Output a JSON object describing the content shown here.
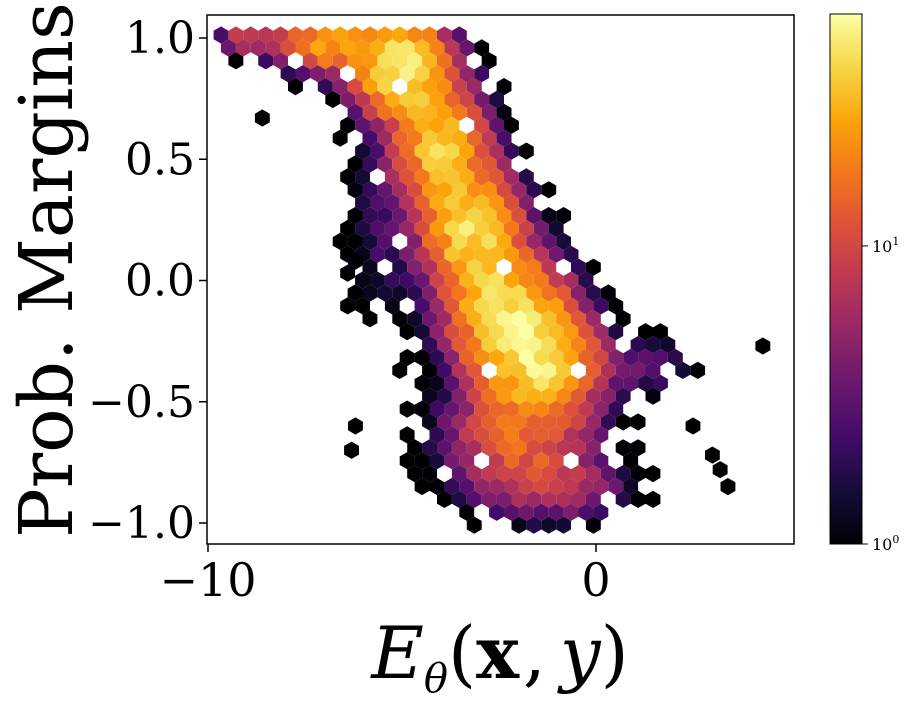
{
  "chart_data": {
    "type": "heatmap",
    "subtype": "hexbin",
    "xlabel": "E_θ(x, y)",
    "xlabel_parts": {
      "main": "E",
      "sub": "θ",
      "args": "(",
      "x": "x",
      "comma": ",",
      "y": "y",
      "close": ")"
    },
    "ylabel": "Prob. Margins",
    "xlim": [
      -10.2,
      5.0
    ],
    "ylim": [
      -1.06,
      1.06
    ],
    "xticks": [
      {
        "value": -10,
        "label": "−10"
      },
      {
        "value": 0,
        "label": "0"
      }
    ],
    "yticks": [
      {
        "value": 1.0,
        "label": "1.0"
      },
      {
        "value": 0.5,
        "label": "0.5"
      },
      {
        "value": 0.0,
        "label": "0.0"
      },
      {
        "value": -0.5,
        "label": "−0.5"
      },
      {
        "value": -1.0,
        "label": "−1.0"
      }
    ],
    "colorbar": {
      "scale": "log",
      "colormap": "inferno",
      "min": 1,
      "max": 60,
      "ticks": [
        {
          "value": 1,
          "base": "10",
          "exp": "0"
        },
        {
          "value": 10,
          "base": "10",
          "exp": "1"
        }
      ]
    },
    "grid": false,
    "density_ridge": [
      {
        "x": -9.0,
        "y": 1.0,
        "sx": 0.45,
        "sy": 0.04,
        "peak": 10
      },
      {
        "x": -7.0,
        "y": 0.98,
        "sx": 0.7,
        "sy": 0.07,
        "peak": 25
      },
      {
        "x": -5.0,
        "y": 0.88,
        "sx": 0.7,
        "sy": 0.12,
        "peak": 50
      },
      {
        "x": -4.0,
        "y": 0.55,
        "sx": 0.65,
        "sy": 0.15,
        "peak": 35
      },
      {
        "x": -3.2,
        "y": 0.2,
        "sx": 0.7,
        "sy": 0.15,
        "peak": 40
      },
      {
        "x": -2.2,
        "y": -0.15,
        "sx": 0.85,
        "sy": 0.15,
        "peak": 45
      },
      {
        "x": -1.3,
        "y": -0.35,
        "sx": 0.8,
        "sy": 0.12,
        "peak": 35
      },
      {
        "x": -2.0,
        "y": -0.65,
        "sx": 1.1,
        "sy": 0.15,
        "peak": 14
      },
      {
        "x": -0.8,
        "y": -0.85,
        "sx": 1.0,
        "sy": 0.08,
        "peak": 6
      },
      {
        "x": 1.3,
        "y": -0.35,
        "sx": 0.7,
        "sy": 0.08,
        "peak": 3
      },
      {
        "x": -5.5,
        "y": 0.2,
        "sx": 0.6,
        "sy": 0.3,
        "peak": 2
      }
    ],
    "outlier_bins": [
      {
        "x": 4.3,
        "y": -0.27,
        "count": 1
      },
      {
        "x": 3.4,
        "y": -0.85,
        "count": 1
      },
      {
        "x": 3.0,
        "y": -0.72,
        "count": 1
      },
      {
        "x": 3.2,
        "y": -0.78,
        "count": 1
      },
      {
        "x": 2.5,
        "y": -0.6,
        "count": 1
      },
      {
        "x": -6.3,
        "y": -0.7,
        "count": 1
      },
      {
        "x": -6.2,
        "y": -0.6,
        "count": 1
      },
      {
        "x": -8.6,
        "y": 0.67,
        "count": 1
      },
      {
        "x": -6.4,
        "y": 0.03,
        "count": 1
      },
      {
        "x": -6.2,
        "y": 0.08,
        "count": 1
      }
    ]
  }
}
